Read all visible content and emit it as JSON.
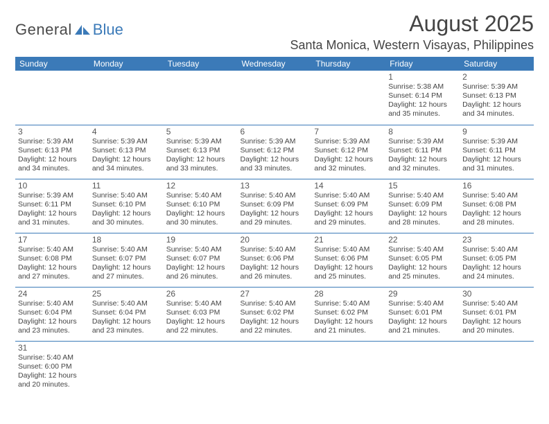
{
  "logo": {
    "part1": "General",
    "part2": "Blue"
  },
  "title": "August 2025",
  "location": "Santa Monica, Western Visayas, Philippines",
  "colors": {
    "header_bg": "#3b7ab8",
    "header_fg": "#ffffff",
    "brand_blue": "#3b7ab8",
    "text": "#444444",
    "border": "#3b7ab8"
  },
  "dow": [
    "Sunday",
    "Monday",
    "Tuesday",
    "Wednesday",
    "Thursday",
    "Friday",
    "Saturday"
  ],
  "weeks": [
    [
      null,
      null,
      null,
      null,
      null,
      {
        "n": "1",
        "sr": "5:38 AM",
        "ss": "6:14 PM",
        "dl": "12 hours and 35 minutes."
      },
      {
        "n": "2",
        "sr": "5:39 AM",
        "ss": "6:13 PM",
        "dl": "12 hours and 34 minutes."
      }
    ],
    [
      {
        "n": "3",
        "sr": "5:39 AM",
        "ss": "6:13 PM",
        "dl": "12 hours and 34 minutes."
      },
      {
        "n": "4",
        "sr": "5:39 AM",
        "ss": "6:13 PM",
        "dl": "12 hours and 34 minutes."
      },
      {
        "n": "5",
        "sr": "5:39 AM",
        "ss": "6:13 PM",
        "dl": "12 hours and 33 minutes."
      },
      {
        "n": "6",
        "sr": "5:39 AM",
        "ss": "6:12 PM",
        "dl": "12 hours and 33 minutes."
      },
      {
        "n": "7",
        "sr": "5:39 AM",
        "ss": "6:12 PM",
        "dl": "12 hours and 32 minutes."
      },
      {
        "n": "8",
        "sr": "5:39 AM",
        "ss": "6:11 PM",
        "dl": "12 hours and 32 minutes."
      },
      {
        "n": "9",
        "sr": "5:39 AM",
        "ss": "6:11 PM",
        "dl": "12 hours and 31 minutes."
      }
    ],
    [
      {
        "n": "10",
        "sr": "5:39 AM",
        "ss": "6:11 PM",
        "dl": "12 hours and 31 minutes."
      },
      {
        "n": "11",
        "sr": "5:40 AM",
        "ss": "6:10 PM",
        "dl": "12 hours and 30 minutes."
      },
      {
        "n": "12",
        "sr": "5:40 AM",
        "ss": "6:10 PM",
        "dl": "12 hours and 30 minutes."
      },
      {
        "n": "13",
        "sr": "5:40 AM",
        "ss": "6:09 PM",
        "dl": "12 hours and 29 minutes."
      },
      {
        "n": "14",
        "sr": "5:40 AM",
        "ss": "6:09 PM",
        "dl": "12 hours and 29 minutes."
      },
      {
        "n": "15",
        "sr": "5:40 AM",
        "ss": "6:09 PM",
        "dl": "12 hours and 28 minutes."
      },
      {
        "n": "16",
        "sr": "5:40 AM",
        "ss": "6:08 PM",
        "dl": "12 hours and 28 minutes."
      }
    ],
    [
      {
        "n": "17",
        "sr": "5:40 AM",
        "ss": "6:08 PM",
        "dl": "12 hours and 27 minutes."
      },
      {
        "n": "18",
        "sr": "5:40 AM",
        "ss": "6:07 PM",
        "dl": "12 hours and 27 minutes."
      },
      {
        "n": "19",
        "sr": "5:40 AM",
        "ss": "6:07 PM",
        "dl": "12 hours and 26 minutes."
      },
      {
        "n": "20",
        "sr": "5:40 AM",
        "ss": "6:06 PM",
        "dl": "12 hours and 26 minutes."
      },
      {
        "n": "21",
        "sr": "5:40 AM",
        "ss": "6:06 PM",
        "dl": "12 hours and 25 minutes."
      },
      {
        "n": "22",
        "sr": "5:40 AM",
        "ss": "6:05 PM",
        "dl": "12 hours and 25 minutes."
      },
      {
        "n": "23",
        "sr": "5:40 AM",
        "ss": "6:05 PM",
        "dl": "12 hours and 24 minutes."
      }
    ],
    [
      {
        "n": "24",
        "sr": "5:40 AM",
        "ss": "6:04 PM",
        "dl": "12 hours and 23 minutes."
      },
      {
        "n": "25",
        "sr": "5:40 AM",
        "ss": "6:04 PM",
        "dl": "12 hours and 23 minutes."
      },
      {
        "n": "26",
        "sr": "5:40 AM",
        "ss": "6:03 PM",
        "dl": "12 hours and 22 minutes."
      },
      {
        "n": "27",
        "sr": "5:40 AM",
        "ss": "6:02 PM",
        "dl": "12 hours and 22 minutes."
      },
      {
        "n": "28",
        "sr": "5:40 AM",
        "ss": "6:02 PM",
        "dl": "12 hours and 21 minutes."
      },
      {
        "n": "29",
        "sr": "5:40 AM",
        "ss": "6:01 PM",
        "dl": "12 hours and 21 minutes."
      },
      {
        "n": "30",
        "sr": "5:40 AM",
        "ss": "6:01 PM",
        "dl": "12 hours and 20 minutes."
      }
    ],
    [
      {
        "n": "31",
        "sr": "5:40 AM",
        "ss": "6:00 PM",
        "dl": "12 hours and 20 minutes."
      },
      null,
      null,
      null,
      null,
      null,
      null
    ]
  ],
  "labels": {
    "sunrise": "Sunrise:",
    "sunset": "Sunset:",
    "daylight": "Daylight:"
  }
}
